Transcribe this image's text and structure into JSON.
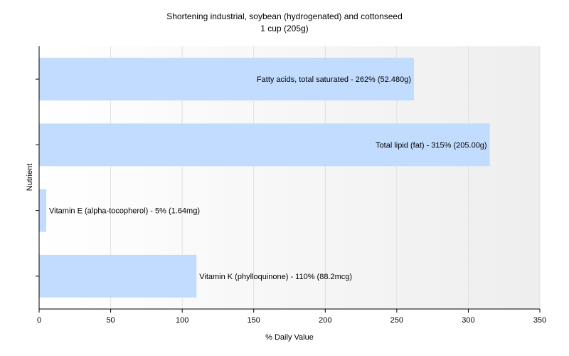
{
  "chart_data": {
    "type": "bar",
    "orientation": "horizontal",
    "title": "Shortening industrial, soybean (hydrogenated) and cottonseed",
    "subtitle": "1 cup (205g)",
    "xlabel": "% Daily Value",
    "ylabel": "Nutrient",
    "xlim": [
      0,
      350
    ],
    "xticks": [
      0,
      50,
      100,
      150,
      200,
      250,
      300,
      350
    ],
    "grid": true,
    "colors": {
      "bar": "#c2dcff",
      "grid": "#e0e0e0",
      "axis": "#000000",
      "background_end": "#eeeeee"
    },
    "categories": [
      "Fatty acids, total saturated",
      "Total lipid (fat)",
      "Vitamin E (alpha-tocopherol)",
      "Vitamin K (phylloquinone)"
    ],
    "values": [
      262,
      315,
      5,
      110
    ],
    "bar_labels": [
      "Fatty acids, total saturated - 262% (52.480g)",
      "Total lipid (fat) - 315% (205.00g)",
      "Vitamin E (alpha-tocopherol) - 5% (1.64mg)",
      "Vitamin K (phylloquinone) - 110% (88.2mcg)"
    ]
  }
}
